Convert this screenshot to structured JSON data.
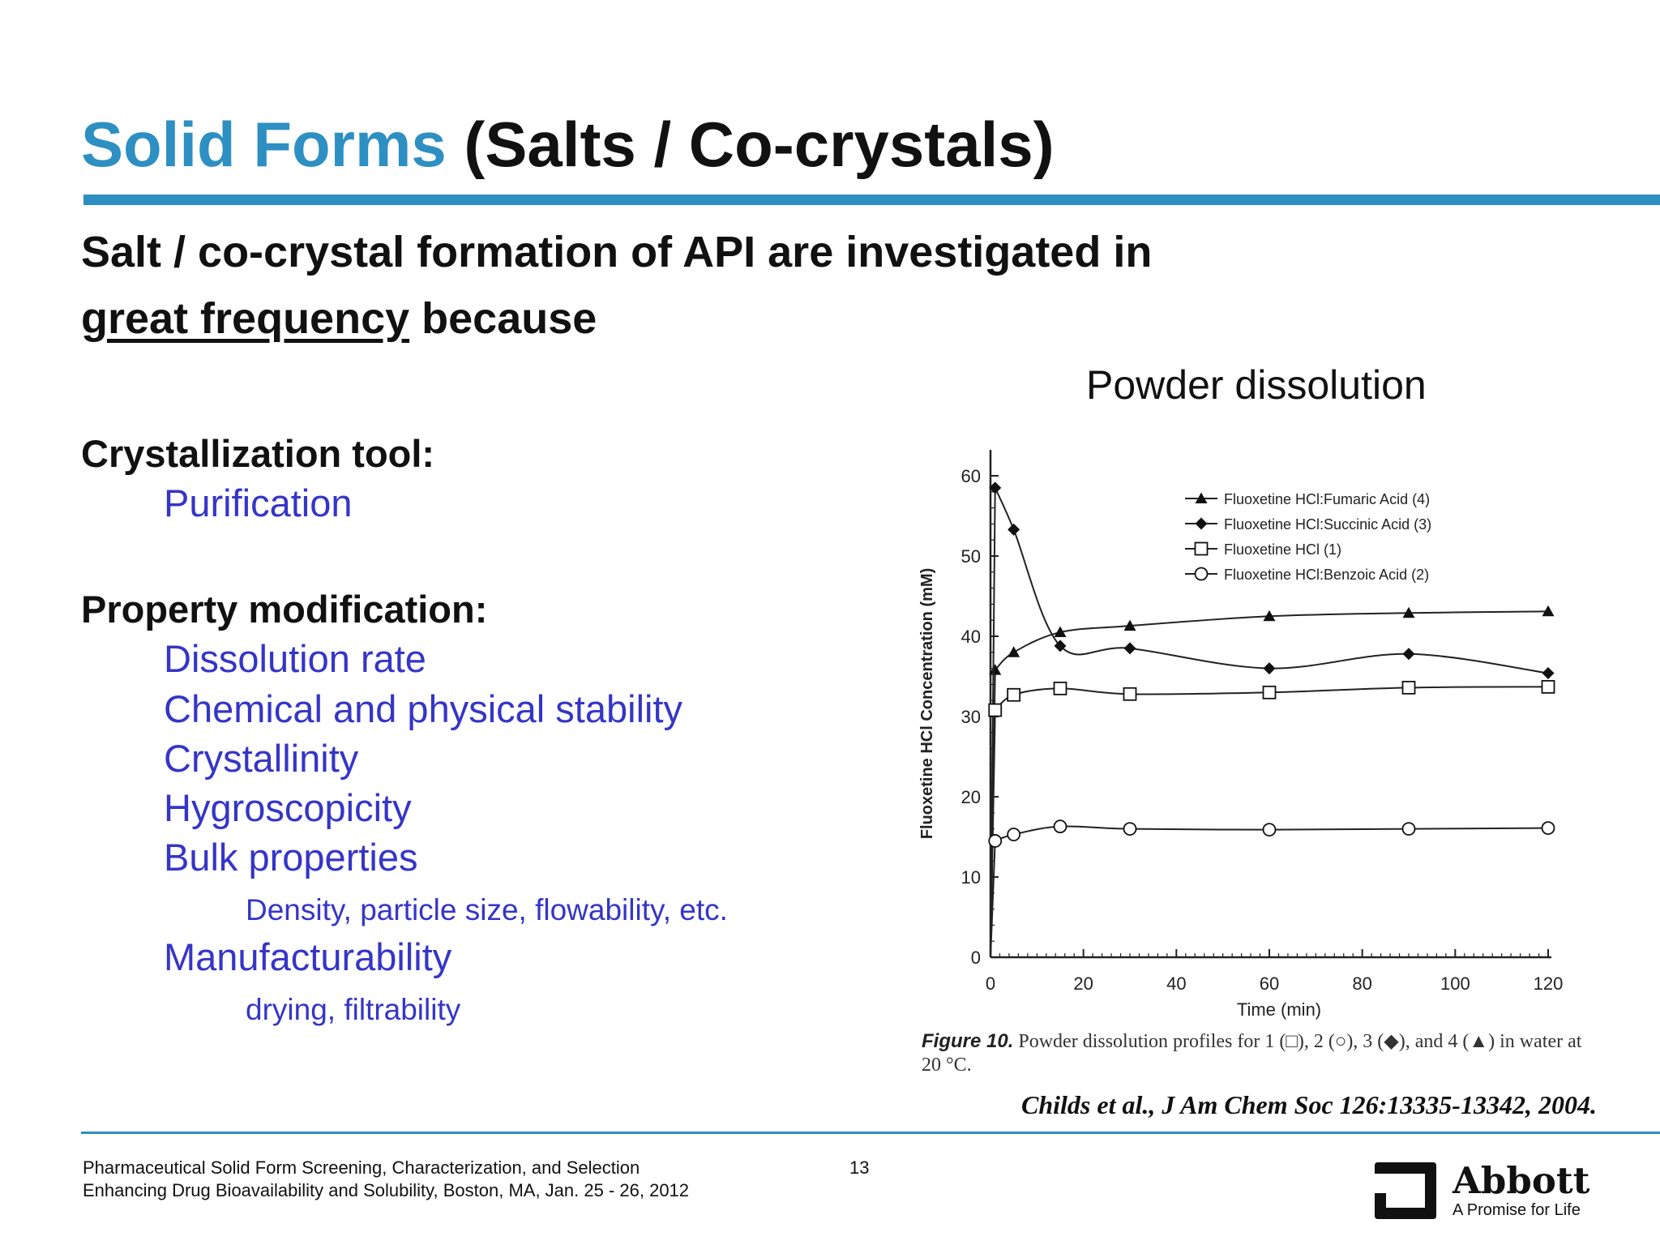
{
  "slide": {
    "title_highlight": "Solid Forms",
    "title_rest": "(Salts / Co-crystals)",
    "intro_line1": "Salt / co-crystal formation of API are investigated in",
    "intro_underlined": "great frequency",
    "intro_after": "because",
    "sections": [
      {
        "heading": "Crystallization tool:",
        "items": [
          {
            "text": "Purification",
            "level": 1
          }
        ]
      },
      {
        "heading": "Property modification:",
        "items": [
          {
            "text": "Dissolution rate",
            "level": 1
          },
          {
            "text": "Chemical and physical stability",
            "level": 1
          },
          {
            "text": "Crystallinity",
            "level": 1
          },
          {
            "text": "Hygroscopicity",
            "level": 1
          },
          {
            "text": "Bulk properties",
            "level": 1
          },
          {
            "text": "Density, particle size, flowability, etc.",
            "level": 2
          },
          {
            "text": "Manufacturability",
            "level": 1
          },
          {
            "text": "drying, filtrability",
            "level": 2
          }
        ]
      }
    ],
    "chart_heading": "Powder dissolution",
    "caption_fig": "Figure 10.",
    "caption_text": "Powder dissolution profiles for 1 (□), 2 (○), 3 (◆), and 4 (▲) in water at 20 °C.",
    "citation": "Childs et al., J Am Chem Soc 126:13335-13342, 2004.",
    "footer_line1": "Pharmaceutical Solid Form Screening, Characterization, and Selection",
    "footer_line2": "Enhancing Drug Bioavailability and Solubility, Boston, MA, Jan. 25 - 26, 2012",
    "page_number": "13",
    "logo_word": "Abbott",
    "logo_tagline": "A Promise for Life",
    "logo_icon": "abbott-logo-icon",
    "colors": {
      "title_blue": "#2e8fc2",
      "bullet_blue": "#3535c8"
    }
  },
  "chart_data": {
    "type": "line",
    "xlabel": "Time (min)",
    "ylabel": "Fluoxetine HCl Concentration (mM)",
    "xlim": [
      0,
      120
    ],
    "ylim": [
      0,
      60
    ],
    "xticks": [
      0,
      20,
      40,
      60,
      80,
      100,
      120
    ],
    "yticks": [
      0,
      10,
      20,
      30,
      40,
      50,
      60
    ],
    "grid": false,
    "legend": "top-right",
    "series": [
      {
        "name": "Fluoxetine HCl:Fumaric Acid (4)",
        "marker": "triangle",
        "x": [
          0,
          1,
          5,
          15,
          30,
          60,
          90,
          120
        ],
        "values": [
          0,
          35.8,
          38,
          40.5,
          41.3,
          42.5,
          42.9,
          43.1
        ]
      },
      {
        "name": "Fluoxetine HCl:Succinic Acid (3)",
        "marker": "diamond",
        "x": [
          0,
          1,
          5,
          15,
          30,
          60,
          90,
          120
        ],
        "values": [
          0,
          58.5,
          53.3,
          38.8,
          38.5,
          36,
          37.8,
          35.4
        ]
      },
      {
        "name": "Fluoxetine HCl (1)",
        "marker": "square",
        "x": [
          0,
          1,
          5,
          15,
          30,
          60,
          90,
          120
        ],
        "values": [
          0,
          30.8,
          32.7,
          33.5,
          32.8,
          33,
          33.6,
          33.7
        ]
      },
      {
        "name": "Fluoxetine HCl:Benzoic Acid (2)",
        "marker": "circle",
        "x": [
          0,
          1,
          5,
          15,
          30,
          60,
          90,
          120
        ],
        "values": [
          0,
          14.5,
          15.3,
          16.3,
          16,
          15.9,
          16,
          16.1
        ]
      }
    ]
  }
}
